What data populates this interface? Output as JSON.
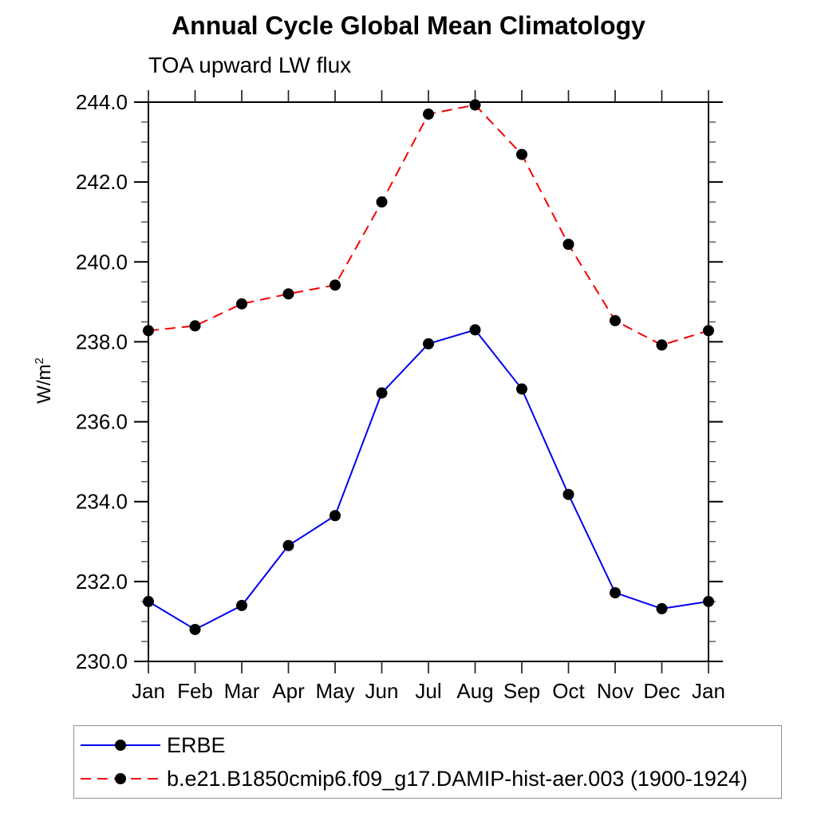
{
  "header": {
    "title": "Annual Cycle Global Mean Climatology",
    "subtitle": "TOA upward LW flux"
  },
  "chart_data": {
    "type": "line",
    "title": "Annual Cycle Global Mean Climatology",
    "subtitle": "TOA upward LW flux",
    "ylabel": "W/m²",
    "ylabel_parts": {
      "base": "W/m",
      "sup": "2"
    },
    "xlabel": "",
    "categories": [
      "Jan",
      "Feb",
      "Mar",
      "Apr",
      "May",
      "Jun",
      "Jul",
      "Aug",
      "Sep",
      "Oct",
      "Nov",
      "Dec",
      "Jan"
    ],
    "ylim": [
      230.0,
      244.0
    ],
    "ytick_major_step": 2.0,
    "ytick_minor_step": 0.5,
    "ytick_label_format": "one_decimal",
    "grid": false,
    "legend_position": "bottom-left-box",
    "series": [
      {
        "name": "ERBE",
        "color": "#0000ee",
        "style": "solid",
        "marker": "circle",
        "marker_color": "#000000",
        "values": [
          231.5,
          230.8,
          231.4,
          232.9,
          233.65,
          236.72,
          237.95,
          238.3,
          236.82,
          234.18,
          231.72,
          231.32,
          231.5
        ]
      },
      {
        "name": "b.e21.B1850cmip6.f09_g17.DAMIP-hist-aer.003 (1900-1924)",
        "color": "#f50000",
        "style": "dashed",
        "marker": "circle",
        "marker_color": "#000000",
        "values": [
          238.28,
          238.4,
          238.95,
          239.2,
          239.42,
          241.5,
          243.7,
          243.93,
          242.69,
          240.44,
          238.53,
          237.92,
          238.28
        ]
      }
    ]
  }
}
